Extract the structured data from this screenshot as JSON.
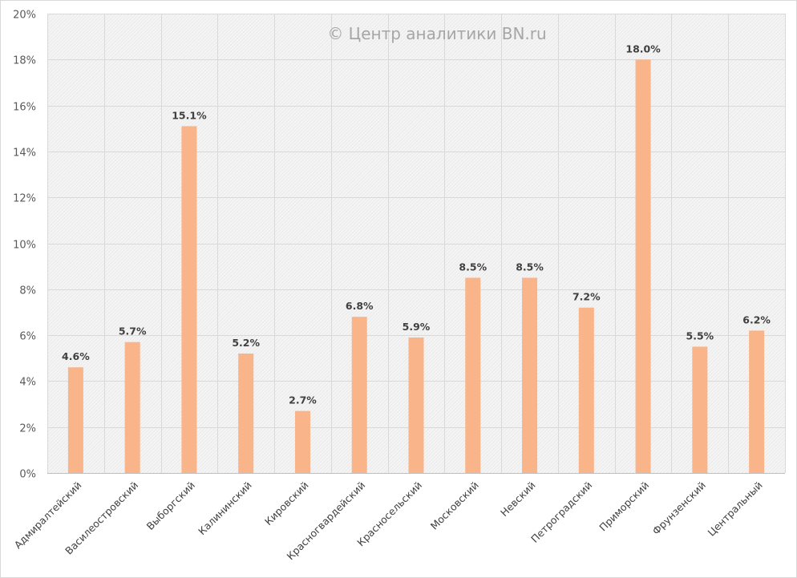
{
  "chart_data": {
    "type": "bar",
    "title": "",
    "watermark": "© Центр аналитики BN.ru",
    "xlabel": "",
    "ylabel": "",
    "ylim": [
      0,
      20
    ],
    "yticks": [
      "0%",
      "2%",
      "4%",
      "6%",
      "8%",
      "10%",
      "12%",
      "14%",
      "16%",
      "18%",
      "20%"
    ],
    "ytick_values": [
      0,
      2,
      4,
      6,
      8,
      10,
      12,
      14,
      16,
      18,
      20
    ],
    "grid": true,
    "bar_color": "#f9b48a",
    "categories": [
      "Адмиралтейский",
      "Василеостровский",
      "Выборгский",
      "Калининский",
      "Кировский",
      "Красногвардейский",
      "Красносельский",
      "Московский",
      "Невский",
      "Петроградский",
      "Приморский",
      "Фрунзенский",
      "Центральный"
    ],
    "values": [
      4.6,
      5.7,
      15.1,
      5.2,
      2.7,
      6.8,
      5.9,
      8.5,
      8.5,
      7.2,
      18.0,
      5.5,
      6.2
    ],
    "data_labels": [
      "4.6%",
      "5.7%",
      "15.1%",
      "5.2%",
      "2.7%",
      "6.8%",
      "5.9%",
      "8.5%",
      "8.5%",
      "7.2%",
      "18.0%",
      "5.5%",
      "6.2%"
    ]
  }
}
